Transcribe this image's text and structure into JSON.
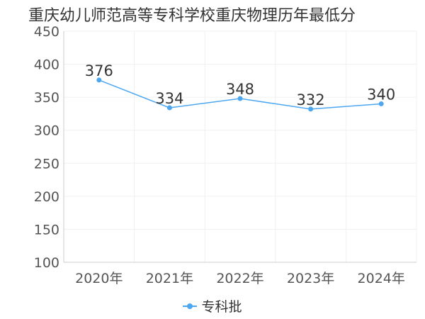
{
  "chart_data": {
    "type": "line",
    "title": "重庆幼儿师范高等专科学校重庆物理历年最低分",
    "categories": [
      "2020年",
      "2021年",
      "2022年",
      "2023年",
      "2024年"
    ],
    "series": [
      {
        "name": "专科批",
        "values": [
          376,
          334,
          348,
          332,
          340
        ]
      }
    ],
    "ylim": [
      100,
      450
    ],
    "yticks": [
      100,
      150,
      200,
      250,
      300,
      350,
      400,
      450
    ],
    "grid": true,
    "legend": "bottom-center",
    "colors": {
      "line": "#4da6f0",
      "axis": "#cccccc",
      "grid": "#f0f0f0"
    }
  }
}
